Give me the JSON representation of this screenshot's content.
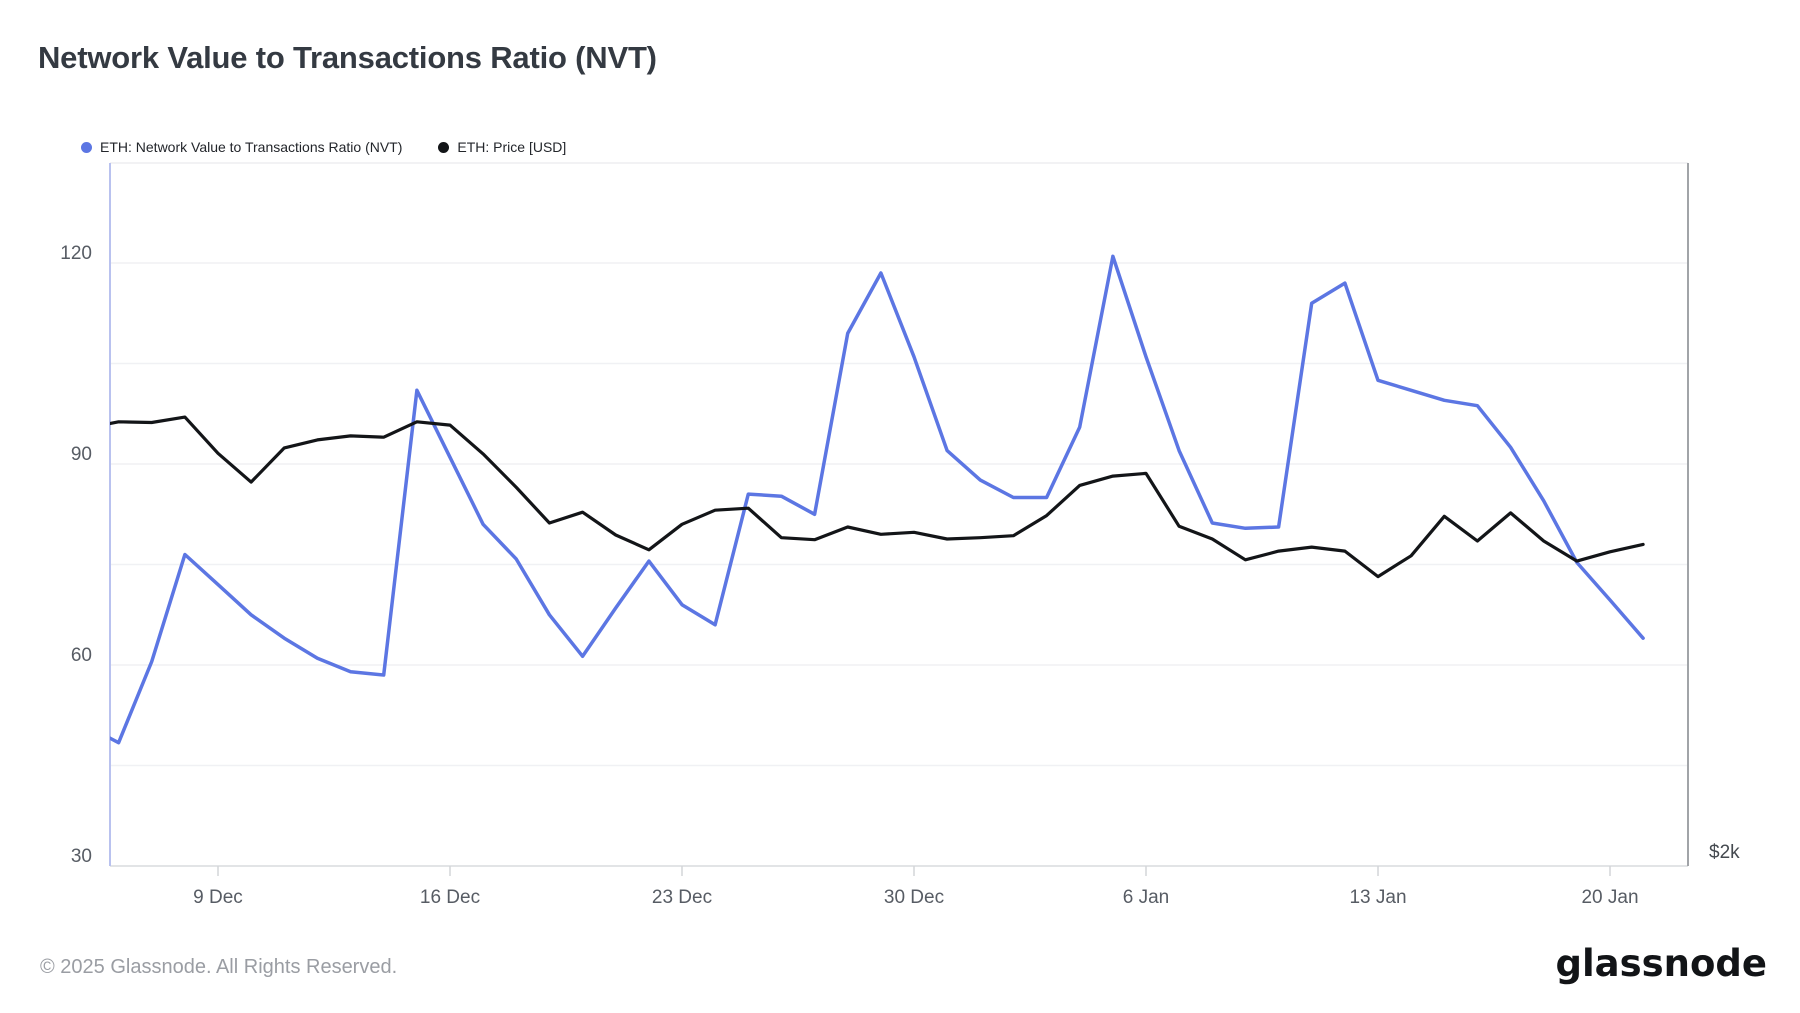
{
  "page": {
    "title": "Network Value to Transactions Ratio (NVT)",
    "footer_copyright": "© 2025 Glassnode. All Rights Reserved.",
    "brand_logo": "glassnode"
  },
  "legend": {
    "items": [
      {
        "label": "ETH: Network Value to Transactions Ratio (NVT)",
        "color": "#5c76e3"
      },
      {
        "label": "ETH: Price [USD]",
        "color": "#131518"
      }
    ]
  },
  "chart_data": {
    "type": "line",
    "title": "Network Value to Transactions Ratio (NVT)",
    "x": [
      "5 Dec",
      "6 Dec",
      "7 Dec",
      "8 Dec",
      "9 Dec",
      "10 Dec",
      "11 Dec",
      "12 Dec",
      "13 Dec",
      "14 Dec",
      "15 Dec",
      "16 Dec",
      "17 Dec",
      "18 Dec",
      "19 Dec",
      "20 Dec",
      "21 Dec",
      "22 Dec",
      "23 Dec",
      "24 Dec",
      "25 Dec",
      "26 Dec",
      "27 Dec",
      "28 Dec",
      "29 Dec",
      "30 Dec",
      "31 Dec",
      "1 Jan",
      "2 Jan",
      "3 Jan",
      "4 Jan",
      "5 Jan",
      "6 Jan",
      "7 Jan",
      "8 Jan",
      "9 Jan",
      "10 Jan",
      "11 Jan",
      "12 Jan",
      "13 Jan",
      "14 Jan",
      "15 Jan",
      "16 Jan",
      "17 Jan",
      "18 Jan",
      "19 Jan",
      "20 Jan",
      "21 Jan"
    ],
    "series": [
      {
        "name": "ETH: Network Value to Transactions Ratio (NVT)",
        "color": "#5c76e3",
        "y_axis": "left",
        "values": [
          51,
          48.4,
          60.5,
          76.5,
          72,
          67.5,
          64,
          61,
          59,
          58.5,
          101,
          91,
          81,
          75.8,
          67.5,
          61.3,
          68.5,
          75.5,
          69,
          66,
          85.5,
          85.2,
          82.5,
          109.5,
          118.5,
          106,
          92,
          87.6,
          85,
          85,
          95.5,
          121,
          106,
          92,
          81.2,
          80.4,
          80.6,
          114,
          117,
          102.5,
          101,
          99.5,
          98.7,
          92.5,
          84.5,
          75.3,
          69.7,
          64
        ]
      },
      {
        "name": "ETH: Price [USD]",
        "color": "#131518",
        "y_axis": "right",
        "values_scale": "left-axis units as plotted; right price axis shows only the $2k tick",
        "values": [
          95.3,
          96.3,
          96.2,
          97,
          91.6,
          87.3,
          92.4,
          93.6,
          94.2,
          94,
          96.3,
          95.8,
          91.5,
          86.5,
          81.2,
          82.8,
          79.4,
          77.2,
          81,
          83.1,
          83.4,
          79,
          78.7,
          80.6,
          79.5,
          79.8,
          78.8,
          79,
          79.3,
          82.3,
          86.8,
          88.2,
          88.6,
          80.7,
          78.8,
          75.7,
          77,
          77.6,
          77,
          73.2,
          76.3,
          82.2,
          78.5,
          82.7,
          78.5,
          75.5,
          76.9,
          78
        ]
      }
    ],
    "left_axis": {
      "tick_labels": [
        "30",
        "60",
        "90",
        "120"
      ],
      "tick_values": [
        30,
        60,
        90,
        120
      ],
      "range": [
        30,
        135
      ],
      "gridline_step": 15
    },
    "right_axis": {
      "tick_label": "$2k"
    },
    "x_axis": {
      "tick_labels": [
        "9 Dec",
        "16 Dec",
        "23 Dec",
        "30 Dec",
        "6 Jan",
        "13 Jan",
        "20 Jan"
      ],
      "tick_x_indices": [
        4,
        11,
        18,
        25,
        32,
        39,
        46
      ]
    },
    "grid": "horizontal only",
    "legend_position": "top-left"
  }
}
